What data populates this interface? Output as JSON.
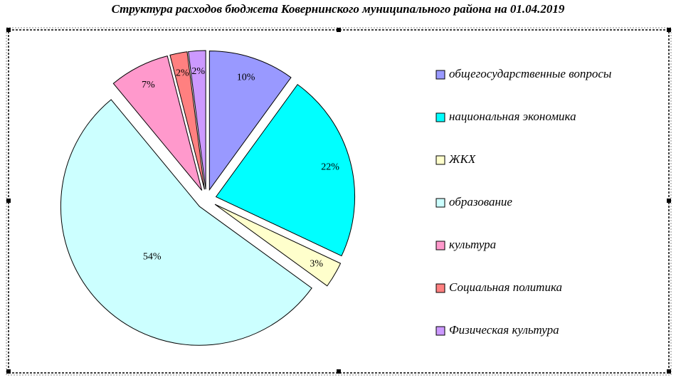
{
  "chart_data": {
    "type": "pie",
    "title": "Структура расходов бюджета Ковернинского муниципального района на 01.04.2019",
    "categories": [
      "общегосударственные вопросы",
      "национальная экономика",
      "ЖКХ",
      "образование",
      "культура",
      "Социальная политика",
      "Физическая культура"
    ],
    "values": [
      10,
      22,
      3,
      54,
      7,
      2,
      2
    ],
    "value_labels": [
      "10%",
      "22%",
      "3%",
      "54%",
      "7%",
      "2%",
      "2%"
    ],
    "colors": [
      "#9999ff",
      "#00ffff",
      "#ffffcc",
      "#ccffff",
      "#ff99cc",
      "#ff8080",
      "#cc99ff"
    ],
    "legend": "right"
  }
}
